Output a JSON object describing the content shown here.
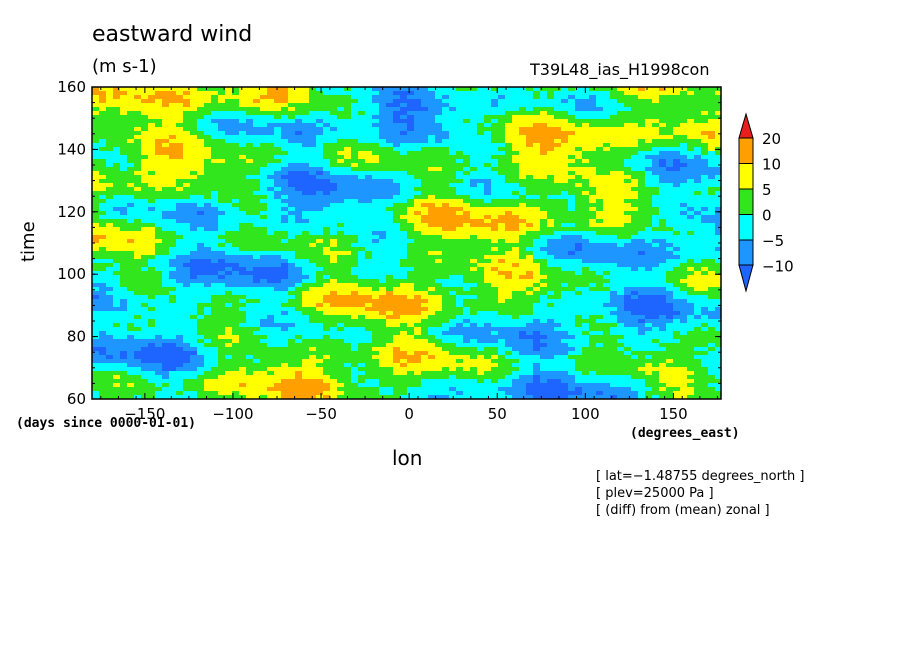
{
  "chart_data": {
    "type": "heatmap",
    "title": "eastward wind",
    "units": "(m s-1)",
    "run_label": "T39L48_ias_H1998con",
    "xlabel": "lon",
    "ylabel": "time",
    "x_unit": "(degrees_east)",
    "y_unit": "(days since 0000-01-01)",
    "xlim": [
      -180,
      177
    ],
    "ylim": [
      60,
      160
    ],
    "x_ticks": [
      -150,
      -100,
      -50,
      0,
      50,
      100,
      150
    ],
    "x_tick_labels": [
      "−150",
      "−100",
      "−50",
      "0",
      "50",
      "100",
      "150"
    ],
    "y_ticks": [
      60,
      80,
      100,
      120,
      140,
      160
    ],
    "y_tick_labels": [
      "60",
      "80",
      "100",
      "120",
      "140",
      "160"
    ],
    "colorbar": {
      "levels": [
        -10,
        -5,
        0,
        5,
        10,
        20
      ],
      "level_labels": [
        "−10",
        "−5",
        "0",
        "5",
        "10",
        "20"
      ],
      "colors": [
        "#1e64ff",
        "#1e96ff",
        "#00ffff",
        "#32e61e",
        "#ffff00",
        "#ffa000",
        "#e61e1e"
      ]
    },
    "notes": [
      "[ lat=−1.48755 degrees_north ]",
      "[ plev=25000 Pa ]",
      "[ (diff) from (mean) zonal ]"
    ]
  }
}
